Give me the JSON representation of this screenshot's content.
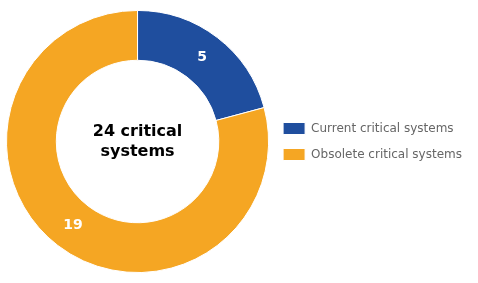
{
  "chart_data": {
    "type": "donut",
    "categories": [
      "Current critical systems",
      "Obsolete critical systems"
    ],
    "values": [
      5,
      19
    ],
    "colors": [
      "#1f4e9e",
      "#f5a623"
    ],
    "data_labels": true,
    "annotations": [
      "24 critical",
      "systems"
    ],
    "legend": "right"
  }
}
